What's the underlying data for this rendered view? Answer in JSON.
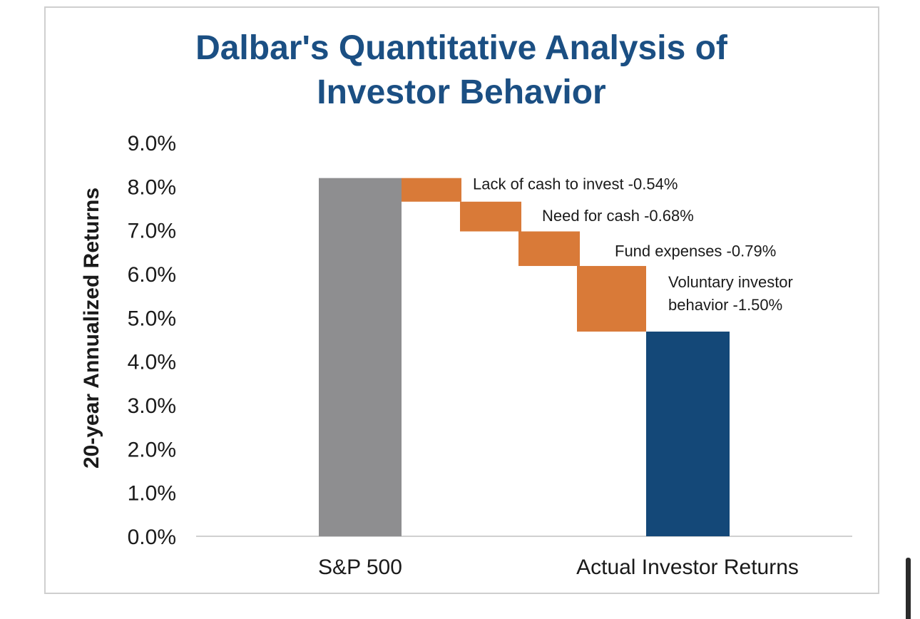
{
  "chart_data": {
    "type": "bar",
    "subtype": "waterfall",
    "title_lines": [
      "Dalbar's Quantitative Analysis of",
      "Investor Behavior"
    ],
    "ylabel": "20-year Annualized Returns",
    "ylim": [
      0,
      9
    ],
    "yticks": [
      "0.0%",
      "1.0%",
      "2.0%",
      "3.0%",
      "4.0%",
      "5.0%",
      "6.0%",
      "7.0%",
      "8.0%",
      "9.0%"
    ],
    "categories": [
      "S&P 500",
      "Actual Investor Returns"
    ],
    "start": {
      "category": "S&P 500",
      "value": 8.19,
      "color": "#8e8e90"
    },
    "steps": [
      {
        "label": "Lack of cash to invest -0.54%",
        "value": -0.54
      },
      {
        "label": "Need for cash -0.68%",
        "value": -0.68
      },
      {
        "label": "Fund expenses -0.79%",
        "value": -0.79
      },
      {
        "label_lines": [
          "Voluntary investor",
          "behavior -1.50%"
        ],
        "value": -1.5
      }
    ],
    "end": {
      "category": "Actual Investor Returns",
      "value": 4.68,
      "color": "#144878"
    },
    "step_color": "#d97a38",
    "grid": false
  },
  "colors": {
    "title": "#1b4f83",
    "text": "#1a1a1a",
    "axis": "#d0d0d0"
  }
}
